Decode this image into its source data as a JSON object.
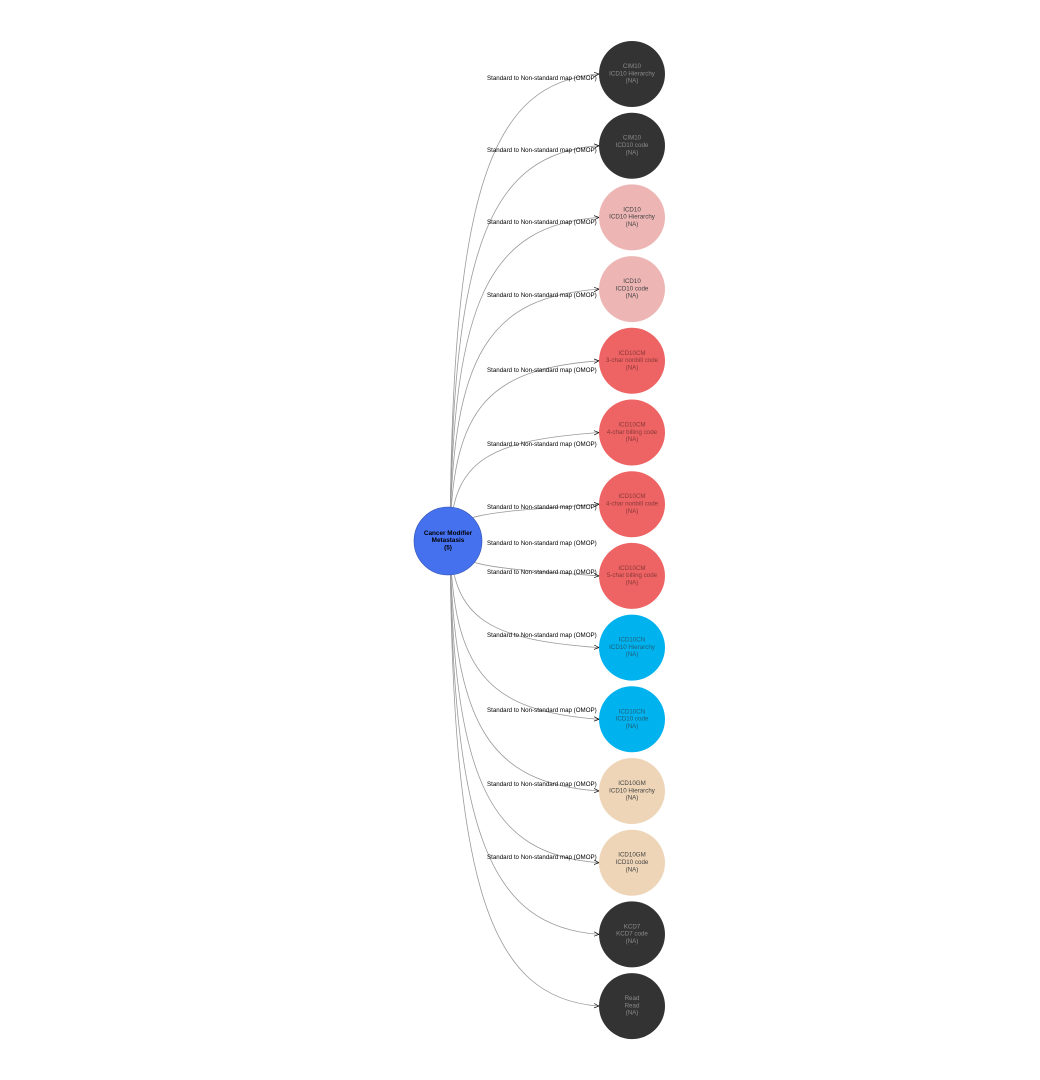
{
  "center": {
    "lines": [
      "Cancer Modifier",
      "Metastasis",
      "(5)"
    ],
    "color": "#4570EE"
  },
  "edge_label": "Standard to Non-standard map (OMOP)",
  "targets": [
    {
      "lines": [
        "CIM10",
        "ICD10 Hierarchy",
        "(NA)"
      ],
      "fill": "#333333",
      "text": "#8a8a8a",
      "labeled": true
    },
    {
      "lines": [
        "CIM10",
        "ICD10 code",
        "(NA)"
      ],
      "fill": "#333333",
      "text": "#8a8a8a",
      "labeled": true
    },
    {
      "lines": [
        "ICD10",
        "ICD10 Hierarchy",
        "(NA)"
      ],
      "fill": "#EDB6B4",
      "text": "#444444",
      "labeled": true
    },
    {
      "lines": [
        "ICD10",
        "ICD10 code",
        "(NA)"
      ],
      "fill": "#EDB6B4",
      "text": "#444444",
      "labeled": true
    },
    {
      "lines": [
        "ICD10CM",
        "3-char nonbill code",
        "(NA)"
      ],
      "fill": "#EE6363",
      "text": "#8a3a3a",
      "labeled": true
    },
    {
      "lines": [
        "ICD10CM",
        "4-char billing code",
        "(NA)"
      ],
      "fill": "#EE6363",
      "text": "#8a3a3a",
      "labeled": true
    },
    {
      "lines": [
        "ICD10CM",
        "4-char nonbill code",
        "(NA)"
      ],
      "fill": "#EE6363",
      "text": "#8a3a3a",
      "labeled": true
    },
    {
      "lines": [
        "ICD10CM",
        "5-char billing code",
        "(NA)"
      ],
      "fill": "#EE6363",
      "text": "#8a3a3a",
      "labeled": true
    },
    {
      "lines": [
        "ICD10CN",
        "ICD10 Hierarchy",
        "(NA)"
      ],
      "fill": "#00B2EE",
      "text": "#1f5f7a",
      "labeled": true
    },
    {
      "lines": [
        "ICD10CN",
        "ICD10 code",
        "(NA)"
      ],
      "fill": "#00B2EE",
      "text": "#1f5f7a",
      "labeled": true
    },
    {
      "lines": [
        "ICD10GM",
        "ICD10 Hierarchy",
        "(NA)"
      ],
      "fill": "#EED5B7",
      "text": "#444444",
      "labeled": true
    },
    {
      "lines": [
        "ICD10GM",
        "ICD10 code",
        "(NA)"
      ],
      "fill": "#EED5B7",
      "text": "#444444",
      "labeled": true
    },
    {
      "lines": [
        "KCD7",
        "KCD7 code",
        "(NA)"
      ],
      "fill": "#333333",
      "text": "#8a8a8a",
      "labeled": true
    },
    {
      "lines": [
        "Read",
        "Read",
        "(NA)"
      ],
      "fill": "#333333",
      "text": "#8a8a8a",
      "labeled": false
    }
  ]
}
